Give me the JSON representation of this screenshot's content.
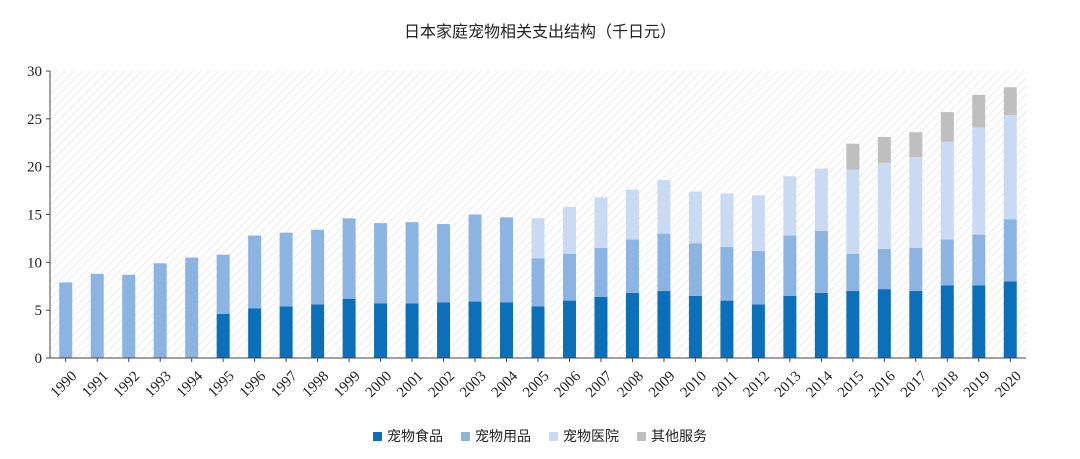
{
  "chart_data": {
    "type": "bar",
    "stacked": true,
    "title": "日本家庭宠物相关支出结构（千日元）",
    "xlabel": "",
    "ylabel": "",
    "ylim": [
      0,
      30
    ],
    "yticks": [
      0,
      5,
      10,
      15,
      20,
      25,
      30
    ],
    "grid": false,
    "background_pattern": "diagonal-hatch",
    "legend_position": "bottom",
    "categories": [
      "1990",
      "1991",
      "1992",
      "1993",
      "1994",
      "1995",
      "1996",
      "1997",
      "1998",
      "1999",
      "2000",
      "2001",
      "2002",
      "2003",
      "2004",
      "2005",
      "2006",
      "2007",
      "2008",
      "2009",
      "2010",
      "2011",
      "2012",
      "2013",
      "2014",
      "2015",
      "2016",
      "2017",
      "2018",
      "2019",
      "2020"
    ],
    "series": [
      {
        "name": "宠物食品",
        "color": "#0b6fba",
        "values": [
          0,
          0,
          0,
          0,
          0,
          4.6,
          5.2,
          5.4,
          5.6,
          6.2,
          5.7,
          5.7,
          5.8,
          5.9,
          5.8,
          5.4,
          6.0,
          6.4,
          6.8,
          7.0,
          6.5,
          6.0,
          5.6,
          6.5,
          6.8,
          7.0,
          7.2,
          7.0,
          7.6,
          7.6,
          8.0
        ]
      },
      {
        "name": "宠物用品",
        "color": "#8cb4e2",
        "values": [
          7.9,
          8.8,
          8.7,
          9.9,
          10.5,
          6.2,
          7.6,
          7.7,
          7.8,
          8.4,
          8.4,
          8.5,
          8.2,
          9.1,
          8.9,
          5.0,
          4.9,
          5.1,
          5.6,
          6.0,
          5.5,
          5.6,
          5.6,
          6.3,
          6.5,
          3.9,
          4.2,
          4.5,
          4.8,
          5.3,
          6.5
        ]
      },
      {
        "name": "宠物医院",
        "color": "#c8dbf2",
        "values": [
          0,
          0,
          0,
          0,
          0,
          0,
          0,
          0,
          0,
          0,
          0,
          0,
          0,
          0,
          0,
          4.2,
          4.9,
          5.3,
          5.2,
          5.6,
          5.4,
          5.6,
          5.8,
          6.2,
          6.5,
          8.8,
          9.0,
          9.5,
          10.2,
          11.2,
          10.9
        ]
      },
      {
        "name": "其他服务",
        "color": "#bfbfbf",
        "values": [
          0,
          0,
          0,
          0,
          0,
          0,
          0,
          0,
          0,
          0,
          0,
          0,
          0,
          0,
          0,
          0,
          0,
          0,
          0,
          0,
          0,
          0,
          0,
          0,
          0,
          2.7,
          2.7,
          2.6,
          3.1,
          3.4,
          2.9
        ]
      }
    ]
  }
}
